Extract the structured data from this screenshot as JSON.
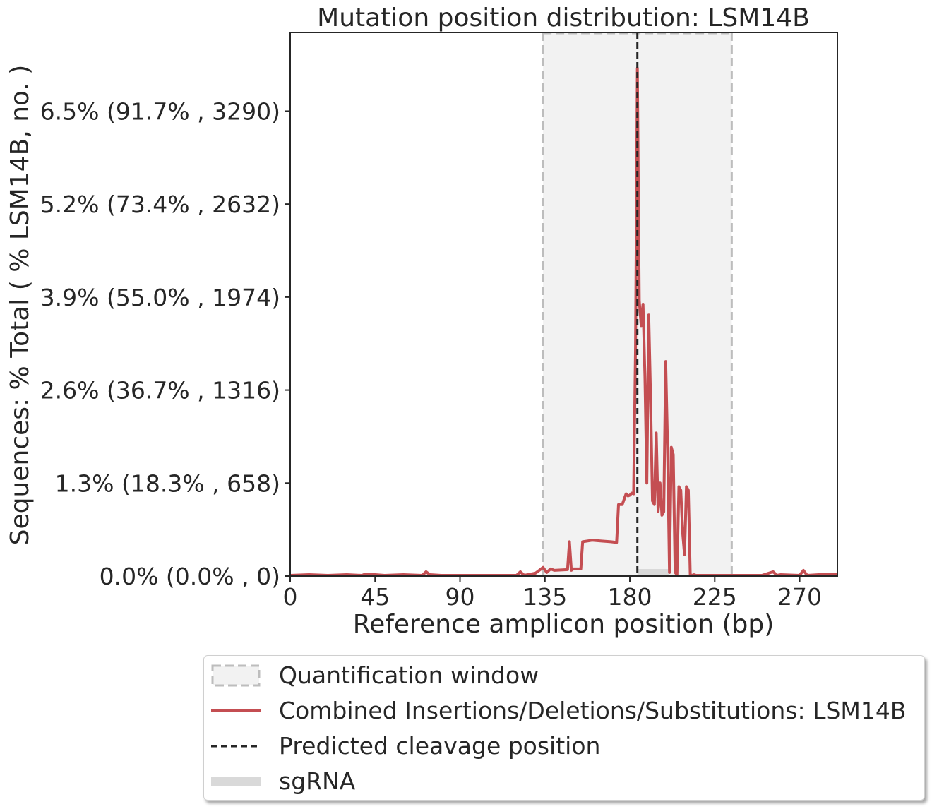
{
  "chart_data": {
    "type": "line",
    "title": "Mutation position distribution: LSM14B",
    "xlabel": "Reference amplicon position (bp)",
    "ylabel": "Sequences: % Total ( % LSM14B, no. )",
    "xlim": [
      0,
      290
    ],
    "ylim": [
      0,
      7.6
    ],
    "xticks": [
      0,
      45,
      90,
      135,
      180,
      225,
      270
    ],
    "yticks": [
      {
        "value": 0.0,
        "label": "0.0% (0.0% , 0)"
      },
      {
        "value": 1.3,
        "label": "1.3% (18.3% , 658)"
      },
      {
        "value": 2.6,
        "label": "2.6% (36.7% , 1316)"
      },
      {
        "value": 3.9,
        "label": "3.9% (55.0% , 1974)"
      },
      {
        "value": 5.2,
        "label": "5.2% (73.4% , 2632)"
      },
      {
        "value": 6.5,
        "label": "6.5% (91.7% , 3290)"
      }
    ],
    "quantification_window": [
      134,
      234
    ],
    "predicted_cleavage_position": 184,
    "sgrna": [
      184,
      201
    ],
    "series": [
      {
        "name": "Combined Insertions/Deletions/Substitutions: LSM14B",
        "color": "#c44e52",
        "x": [
          0,
          10,
          20,
          30,
          38,
          40,
          50,
          60,
          70,
          72,
          74,
          80,
          90,
          100,
          110,
          120,
          122,
          124,
          130,
          133,
          134,
          136,
          138,
          140,
          147,
          148,
          149,
          150,
          154,
          155,
          160,
          165,
          170,
          173,
          174,
          176,
          178,
          179,
          180,
          181,
          182,
          183,
          184,
          185,
          186,
          187,
          188,
          189,
          190,
          191,
          192,
          193,
          194,
          195,
          196,
          197,
          198,
          199,
          200,
          201,
          202,
          203,
          204,
          205,
          206,
          207,
          208,
          209,
          210,
          211,
          212,
          213,
          214,
          215,
          216,
          220,
          230,
          240,
          250,
          256,
          258,
          260,
          270,
          272,
          274,
          280,
          290
        ],
        "y": [
          0.01,
          0.02,
          0.01,
          0.02,
          0.01,
          0.03,
          0.01,
          0.02,
          0.01,
          0.06,
          0.02,
          0.01,
          0.01,
          0.01,
          0.01,
          0.01,
          0.06,
          0.01,
          0.04,
          0.1,
          0.12,
          0.05,
          0.1,
          0.08,
          0.09,
          0.48,
          0.08,
          0.1,
          0.1,
          0.48,
          0.5,
          0.49,
          0.48,
          0.47,
          1.0,
          1.0,
          1.15,
          1.12,
          1.13,
          1.16,
          1.15,
          3.2,
          7.1,
          3.85,
          3.5,
          3.8,
          2.8,
          1.3,
          3.65,
          2.5,
          1.05,
          1.0,
          2.0,
          0.9,
          1.3,
          0.85,
          0.9,
          3.0,
          1.8,
          0.05,
          1.8,
          1.7,
          0.05,
          0.02,
          1.25,
          1.2,
          0.6,
          0.3,
          1.25,
          1.2,
          0.02,
          0.01,
          0.02,
          0.01,
          0.01,
          0.01,
          0.01,
          0.01,
          0.01,
          0.06,
          0.01,
          0.02,
          0.01,
          0.08,
          0.01,
          0.02,
          0.02
        ]
      }
    ],
    "legend": {
      "placement": "below",
      "items": [
        {
          "label": "Quantification window",
          "kind": "window"
        },
        {
          "label": "Combined Insertions/Deletions/Substitutions: LSM14B",
          "kind": "line"
        },
        {
          "label": "Predicted cleavage position",
          "kind": "dashed"
        },
        {
          "label": "sgRNA",
          "kind": "sgrna"
        }
      ]
    }
  }
}
